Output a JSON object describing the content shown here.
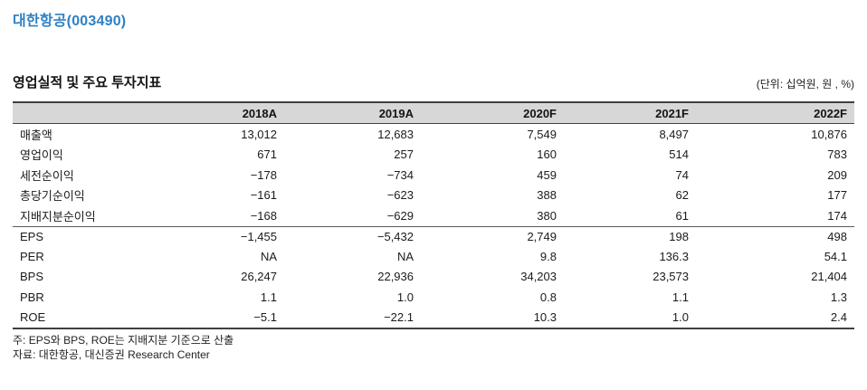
{
  "page": {
    "title": "대한항공(003490)"
  },
  "section": {
    "heading": "영업실적 및 주요 투자지표",
    "units": "(단위: 십억원, 원 , %)"
  },
  "table": {
    "columns": [
      "2018A",
      "2019A",
      "2020F",
      "2021F",
      "2022F"
    ],
    "rows": [
      {
        "label": "매출액",
        "values": [
          "13,012",
          "12,683",
          "7,549",
          "8,497",
          "10,876"
        ]
      },
      {
        "label": "영업이익",
        "values": [
          "671",
          "257",
          "160",
          "514",
          "783"
        ]
      },
      {
        "label": "세전순이익",
        "values": [
          "−178",
          "−734",
          "459",
          "74",
          "209"
        ]
      },
      {
        "label": "총당기순이익",
        "values": [
          "−161",
          "−623",
          "388",
          "62",
          "177"
        ]
      },
      {
        "label": "지배지분순이익",
        "values": [
          "−168",
          "−629",
          "380",
          "61",
          "174"
        ]
      },
      {
        "label": "EPS",
        "values": [
          "−1,455",
          "−5,432",
          "2,749",
          "198",
          "498"
        ]
      },
      {
        "label": "PER",
        "values": [
          "NA",
          "NA",
          "9.8",
          "136.3",
          "54.1"
        ]
      },
      {
        "label": "BPS",
        "values": [
          "26,247",
          "22,936",
          "34,203",
          "23,573",
          "21,404"
        ]
      },
      {
        "label": "PBR",
        "values": [
          "1.1",
          "1.0",
          "0.8",
          "1.1",
          "1.3"
        ]
      },
      {
        "label": "ROE",
        "values": [
          "−5.1",
          "−22.1",
          "10.3",
          "1.0",
          "2.4"
        ]
      }
    ]
  },
  "notes": {
    "note": "주: EPS와 BPS, ROE는 지배지분 기준으로 산출",
    "source": "자료: 대한항공, 대신증권 Research Center"
  },
  "colors": {
    "accent_blue": "#2e80c4",
    "header_bg": "#d7d7d7",
    "rule_dark": "#3f3f3f"
  }
}
